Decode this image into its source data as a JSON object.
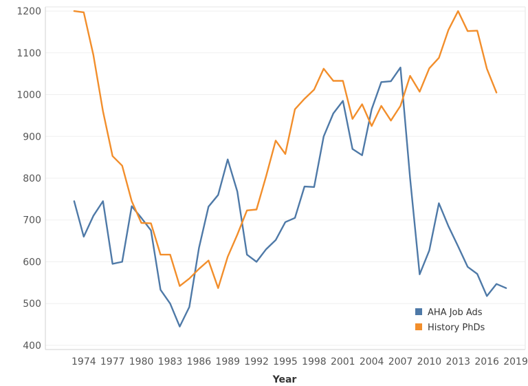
{
  "chart_data": {
    "type": "line",
    "title": "",
    "xlabel": "Year",
    "ylabel": "",
    "xlim": [
      1970,
      2020
    ],
    "ylim": [
      390,
      1210
    ],
    "x_ticks": [
      1974,
      1977,
      1980,
      1983,
      1986,
      1989,
      1992,
      1995,
      1998,
      2001,
      2004,
      2007,
      2010,
      2013,
      2016,
      2019
    ],
    "y_ticks": [
      400,
      500,
      600,
      700,
      800,
      900,
      1000,
      1100,
      1200
    ],
    "grid": true,
    "legend_position": "bottom-right",
    "series": [
      {
        "name": "AHA Job Ads",
        "color": "#4e79a7",
        "x": [
          1973,
          1974,
          1975,
          1976,
          1977,
          1978,
          1979,
          1980,
          1981,
          1982,
          1983,
          1984,
          1985,
          1986,
          1987,
          1988,
          1989,
          1990,
          1991,
          1992,
          1993,
          1994,
          1995,
          1996,
          1997,
          1998,
          1999,
          2000,
          2001,
          2002,
          2003,
          2004,
          2005,
          2006,
          2007,
          2008,
          2009,
          2010,
          2011,
          2012,
          2013,
          2014,
          2015,
          2016,
          2017,
          2018
        ],
        "y": [
          745,
          660,
          710,
          745,
          595,
          600,
          733,
          705,
          675,
          533,
          500,
          445,
          492,
          633,
          732,
          760,
          845,
          768,
          617,
          600,
          630,
          652,
          695,
          705,
          780,
          779,
          900,
          955,
          985,
          870,
          855,
          965,
          1030,
          1032,
          1065,
          800,
          570,
          627,
          740,
          685,
          637,
          588,
          571,
          518,
          547,
          537
        ]
      },
      {
        "name": "History PhDs",
        "color": "#f28e2b",
        "x": [
          1973,
          1974,
          1975,
          1976,
          1977,
          1978,
          1979,
          1980,
          1981,
          1982,
          1983,
          1984,
          1985,
          1986,
          1987,
          1988,
          1989,
          1990,
          1991,
          1992,
          1993,
          1994,
          1995,
          1996,
          1997,
          1998,
          1999,
          2000,
          2001,
          2002,
          2003,
          2004,
          2005,
          2006,
          2007,
          2008,
          2009,
          2010,
          2011,
          2012,
          2013,
          2014,
          2015,
          2016,
          2017
        ],
        "y": [
          1200,
          1197,
          1095,
          960,
          853,
          830,
          745,
          693,
          692,
          617,
          617,
          542,
          560,
          583,
          603,
          537,
          612,
          665,
          723,
          725,
          805,
          890,
          858,
          965,
          990,
          1012,
          1062,
          1033,
          1033,
          942,
          977,
          925,
          973,
          938,
          973,
          1045,
          1007,
          1063,
          1088,
          1155,
          1200,
          1152,
          1153,
          1062,
          1005
        ]
      }
    ]
  }
}
